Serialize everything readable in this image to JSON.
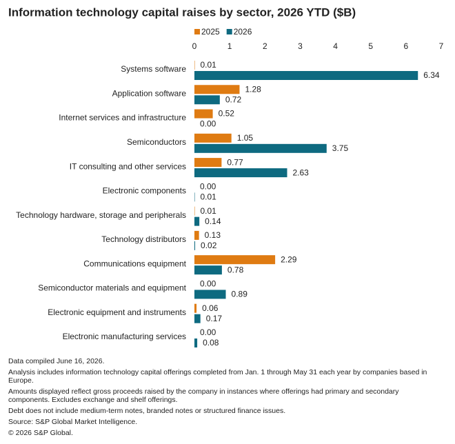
{
  "chart_data": {
    "type": "bar",
    "orientation": "horizontal",
    "title": "Information technology capital raises by sector, 2026 YTD ($B)",
    "categories": [
      "Systems software",
      "Application software",
      "Internet services and infrastructure",
      "Semiconductors",
      "IT consulting and other services",
      "Electronic components",
      "Technology hardware, storage and peripherals",
      "Technology distributors",
      "Communications equipment",
      "Semiconductor materials and equipment",
      "Electronic equipment and instruments",
      "Electronic manufacturing services"
    ],
    "series": [
      {
        "name": "2025",
        "color": "#df7b12",
        "values": [
          0.01,
          1.28,
          0.52,
          1.05,
          0.77,
          0,
          0.01,
          0.13,
          2.29,
          0,
          0.06,
          0
        ],
        "value_labels": [
          "0.01",
          "1.28",
          "0.52",
          "1.05",
          "0.77",
          "0.00",
          "0.01",
          "0.13",
          "2.29",
          "0.00",
          "0.06",
          "0.00"
        ]
      },
      {
        "name": "2026",
        "color": "#0e6a80",
        "values": [
          6.34,
          0.72,
          0,
          3.75,
          2.63,
          0.01,
          0.14,
          0.02,
          0.78,
          0.89,
          0.17,
          0.08
        ],
        "value_labels": [
          "6.34",
          "0.72",
          "0.00",
          "3.75",
          "2.63",
          "0.01",
          "0.14",
          "0.02",
          "0.78",
          "0.89",
          "0.17",
          "0.08"
        ]
      }
    ],
    "xlim": [
      0,
      7
    ],
    "xticks": [
      0,
      1,
      2,
      3,
      4,
      5,
      6,
      7
    ],
    "grid": false,
    "legend": "top",
    "footnotes": [
      "Data compiled June 16, 2026.",
      "Analysis includes information technology capital offerings completed from Jan. 1 through May 31 each year by companies based in Europe.",
      "Amounts displayed reflect gross proceeds raised by the company in instances where offerings had primary and secondary components. Excludes exchange and shelf offerings.",
      "Debt does not include medium-term notes, branded notes or structured finance issues.",
      "Source: S&P Global Market Intelligence.",
      "© 2026 S&P Global."
    ]
  }
}
